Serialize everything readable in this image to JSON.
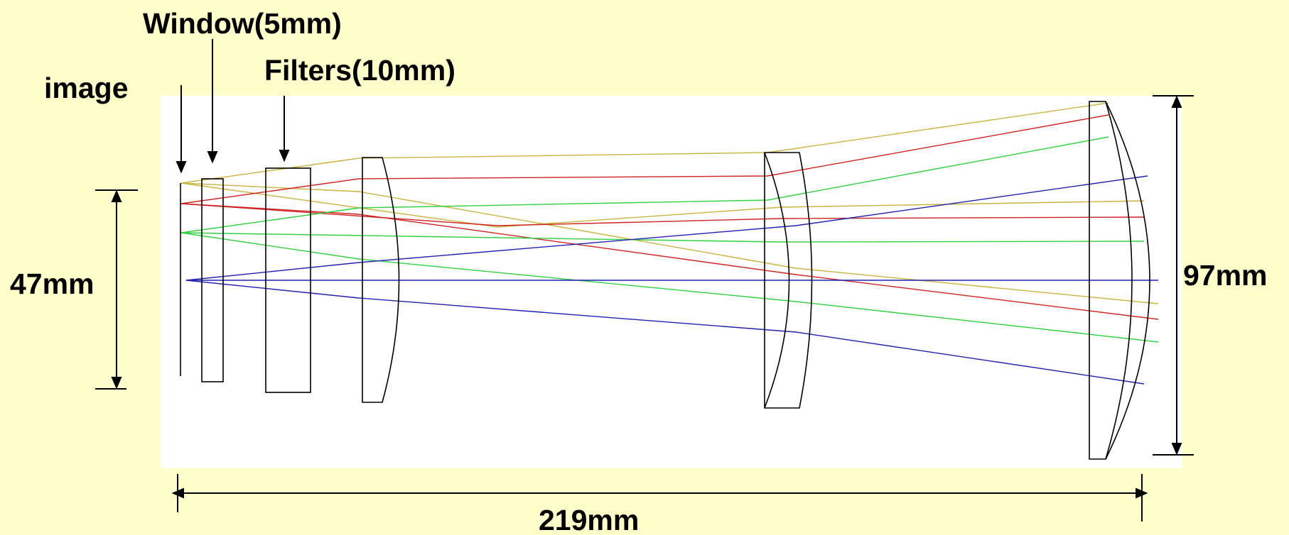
{
  "labels": {
    "image": "image",
    "window": "Window(5mm)",
    "filters": "Filters(10mm)",
    "field_height": "47mm",
    "aperture": "97mm",
    "length": "219mm"
  },
  "colors": {
    "background": "#ffffcc",
    "panel": "#ffffff",
    "element_outline": "#000000",
    "ray_yellow": "#c8b440",
    "ray_red": "#d02020",
    "ray_green": "#30d040",
    "ray_blue": "#2020b0"
  }
}
